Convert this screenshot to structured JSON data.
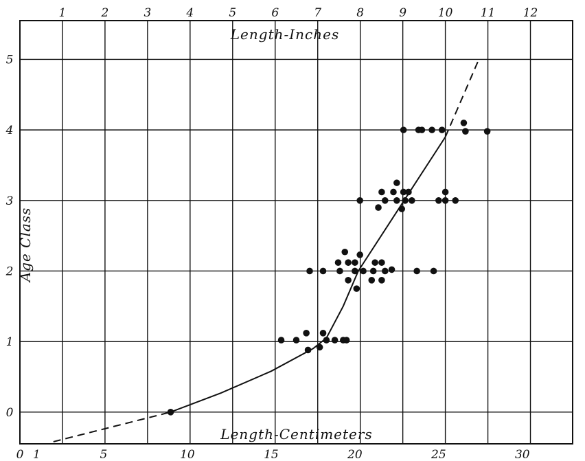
{
  "chart_data": {
    "type": "scatter",
    "title": "",
    "top_axis_label": "Length-Inches",
    "bottom_axis_label": "Length-Centimeters",
    "ylabel": "Age Class",
    "xlim_cm": [
      0,
      33
    ],
    "ylim": [
      -0.45,
      5.55
    ],
    "bottom_ticks": [
      "0",
      "1",
      "5",
      "10",
      "15",
      "20",
      "25",
      "30"
    ],
    "bottom_tick_values": [
      0,
      1,
      5,
      10,
      15,
      20,
      25,
      30
    ],
    "top_ticks": [
      "1",
      "2",
      "3",
      "4",
      "5",
      "6",
      "7",
      "8",
      "9",
      "10",
      "11",
      "12"
    ],
    "top_tick_values_inches": [
      1,
      2,
      3,
      4,
      5,
      6,
      7,
      8,
      9,
      10,
      11,
      12
    ],
    "y_ticks": [
      "0",
      "1",
      "2",
      "3",
      "4",
      "5"
    ],
    "y_tick_values": [
      0,
      1,
      2,
      3,
      4,
      5
    ],
    "grid": true,
    "series": [
      {
        "kind": "points",
        "points": [
          {
            "x": 9.0,
            "y": 0.0
          },
          {
            "x": 15.6,
            "y": 1.02
          },
          {
            "x": 16.5,
            "y": 1.02
          },
          {
            "x": 17.1,
            "y": 1.12
          },
          {
            "x": 17.2,
            "y": 0.88
          },
          {
            "x": 17.9,
            "y": 0.92
          },
          {
            "x": 18.1,
            "y": 1.12
          },
          {
            "x": 18.3,
            "y": 1.02
          },
          {
            "x": 18.8,
            "y": 1.02
          },
          {
            "x": 19.3,
            "y": 1.02
          },
          {
            "x": 19.5,
            "y": 1.02
          },
          {
            "x": 17.3,
            "y": 2.0
          },
          {
            "x": 18.1,
            "y": 2.0
          },
          {
            "x": 19.0,
            "y": 2.12
          },
          {
            "x": 19.1,
            "y": 2.0
          },
          {
            "x": 19.4,
            "y": 2.27
          },
          {
            "x": 19.6,
            "y": 1.87
          },
          {
            "x": 19.6,
            "y": 2.12
          },
          {
            "x": 20.0,
            "y": 2.0
          },
          {
            "x": 20.0,
            "y": 2.12
          },
          {
            "x": 20.1,
            "y": 1.75
          },
          {
            "x": 20.3,
            "y": 2.23
          },
          {
            "x": 20.5,
            "y": 2.0
          },
          {
            "x": 21.0,
            "y": 1.87
          },
          {
            "x": 21.1,
            "y": 2.0
          },
          {
            "x": 21.2,
            "y": 2.12
          },
          {
            "x": 21.6,
            "y": 1.87
          },
          {
            "x": 21.8,
            "y": 2.0
          },
          {
            "x": 21.6,
            "y": 2.12
          },
          {
            "x": 22.2,
            "y": 2.02
          },
          {
            "x": 23.7,
            "y": 2.0
          },
          {
            "x": 24.7,
            "y": 2.0
          },
          {
            "x": 20.3,
            "y": 3.0
          },
          {
            "x": 21.4,
            "y": 2.9
          },
          {
            "x": 21.6,
            "y": 3.12
          },
          {
            "x": 21.8,
            "y": 3.0
          },
          {
            "x": 22.3,
            "y": 3.12
          },
          {
            "x": 22.5,
            "y": 3.0
          },
          {
            "x": 22.5,
            "y": 3.25
          },
          {
            "x": 22.8,
            "y": 2.88
          },
          {
            "x": 22.9,
            "y": 3.12
          },
          {
            "x": 23.0,
            "y": 3.0
          },
          {
            "x": 23.2,
            "y": 3.12
          },
          {
            "x": 23.4,
            "y": 3.0
          },
          {
            "x": 25.0,
            "y": 3.0
          },
          {
            "x": 25.4,
            "y": 3.12
          },
          {
            "x": 25.4,
            "y": 3.0
          },
          {
            "x": 26.0,
            "y": 3.0
          },
          {
            "x": 22.9,
            "y": 4.0
          },
          {
            "x": 23.8,
            "y": 4.0
          },
          {
            "x": 24.0,
            "y": 4.0
          },
          {
            "x": 24.6,
            "y": 4.0
          },
          {
            "x": 25.2,
            "y": 4.0
          },
          {
            "x": 26.5,
            "y": 4.1
          },
          {
            "x": 26.6,
            "y": 3.98
          },
          {
            "x": 27.9,
            "y": 3.98
          }
        ]
      },
      {
        "kind": "growth-curve",
        "points": [
          [
            9.0,
            0.0
          ],
          [
            12.0,
            0.27
          ],
          [
            15.0,
            0.58
          ],
          [
            17.5,
            0.9
          ],
          [
            18.3,
            1.05
          ],
          [
            19.3,
            1.5
          ],
          [
            20.2,
            2.0
          ],
          [
            22.8,
            2.95
          ],
          [
            25.4,
            3.9
          ]
        ]
      },
      {
        "kind": "extrapolated-dashed",
        "segments": [
          [
            [
              2.0,
              -0.42
            ],
            [
              9.0,
              0.0
            ]
          ],
          [
            [
              25.4,
              3.9
            ],
            [
              27.4,
              5.0
            ]
          ]
        ]
      }
    ]
  }
}
